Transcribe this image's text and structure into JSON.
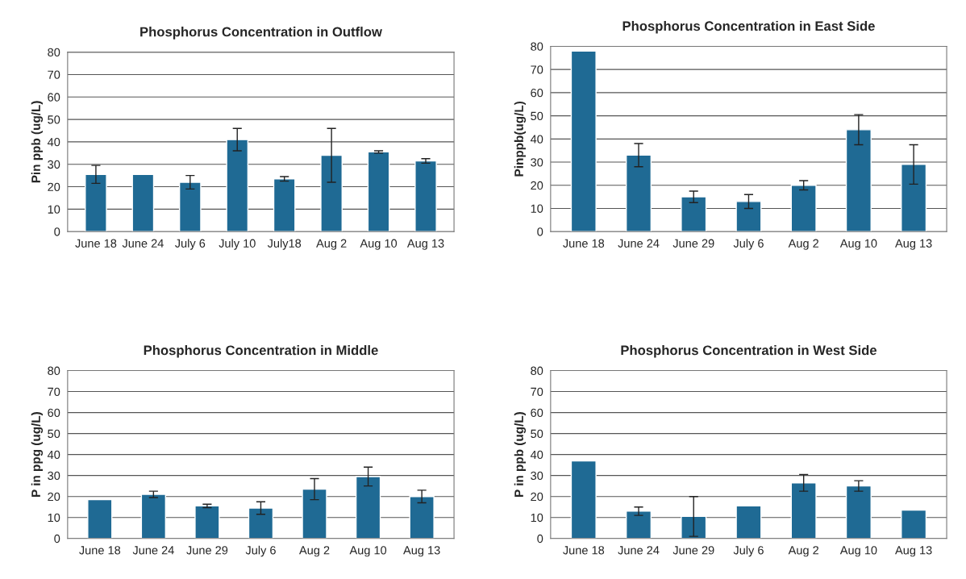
{
  "chart_data": [
    {
      "type": "bar",
      "title": "Phosphorus Concentration in Outflow",
      "ylabel": "Pin ppb (ug/L)",
      "categories": [
        "June 18",
        "June 24",
        "July 6",
        "July 10",
        "July18",
        "Aug 2",
        "Aug 10",
        "Aug 13"
      ],
      "values": [
        25.5,
        25.5,
        22,
        41,
        23.5,
        34,
        35.5,
        31.5
      ],
      "errors": [
        4,
        null,
        3,
        5,
        1,
        12,
        0.5,
        1
      ],
      "color": "#1f6a94",
      "ylim": [
        0,
        80
      ],
      "yticks": [
        0,
        10,
        20,
        30,
        40,
        50,
        60,
        70,
        80
      ],
      "grid": "y"
    },
    {
      "type": "bar",
      "title": "Phosphorus Concentration in East Side",
      "ylabel": "Pinppb(ug/L)",
      "categories": [
        "June 18",
        "June 24",
        "June 29",
        "July 6",
        "Aug 2",
        "Aug 10",
        "Aug 13"
      ],
      "values": [
        78,
        33,
        15,
        13,
        20,
        44,
        29
      ],
      "errors": [
        null,
        5,
        2.5,
        3,
        2,
        6.5,
        8.5
      ],
      "color": "#1f6a94",
      "ylim": [
        0,
        80
      ],
      "yticks": [
        0,
        10,
        20,
        30,
        40,
        50,
        60,
        70,
        80
      ],
      "grid": "y"
    },
    {
      "type": "bar",
      "title": "Phosphorus Concentration in Middle",
      "ylabel": "P in ppg (ug/L)",
      "categories": [
        "June 18",
        "June 24",
        "June 29",
        "July 6",
        "Aug 2",
        "Aug 10",
        "Aug 13"
      ],
      "values": [
        18.5,
        21,
        15.5,
        14.5,
        23.5,
        29.5,
        20
      ],
      "errors": [
        null,
        1.5,
        0.8,
        3,
        5,
        4.5,
        3
      ],
      "color": "#1f6a94",
      "ylim": [
        0,
        80
      ],
      "yticks": [
        0,
        10,
        20,
        30,
        40,
        50,
        60,
        70,
        80
      ],
      "grid": "y"
    },
    {
      "type": "bar",
      "title": "Phosphorus Concentration in West Side",
      "ylabel": "P in ppb (ug/L)",
      "categories": [
        "June 18",
        "June 24",
        "June 29",
        "July 6",
        "Aug 2",
        "Aug 10",
        "Aug 13"
      ],
      "values": [
        37,
        13,
        10.5,
        15.5,
        26.5,
        25,
        13.5
      ],
      "errors": [
        null,
        2,
        9.5,
        null,
        4,
        2.5,
        null
      ],
      "color": "#1f6a94",
      "ylim": [
        0,
        80
      ],
      "yticks": [
        0,
        10,
        20,
        30,
        40,
        50,
        60,
        70,
        80
      ],
      "grid": "y"
    }
  ]
}
